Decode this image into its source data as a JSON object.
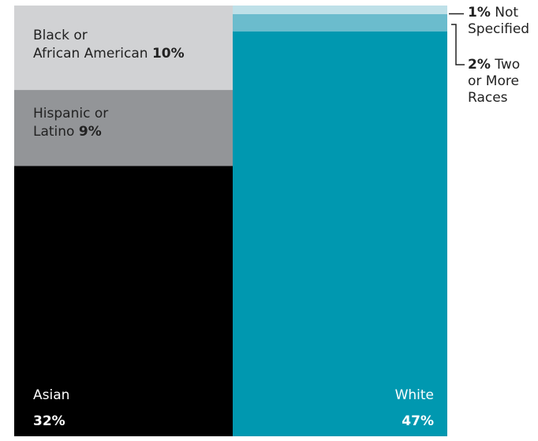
{
  "chart_data": {
    "type": "treemap",
    "unit": "%",
    "segments": [
      {
        "label_lines": [
          "Black or",
          "African American"
        ],
        "value": 10,
        "value_label": "10%",
        "color": "#d1d2d4"
      },
      {
        "label_lines": [
          "Hispanic or",
          "Latino"
        ],
        "value": 9,
        "value_label": "9%",
        "color": "#939598"
      },
      {
        "label_lines": [
          "Asian"
        ],
        "value": 32,
        "value_label": "32%",
        "color": "#000000"
      },
      {
        "label_lines": [
          "White"
        ],
        "value": 47,
        "value_label": "47%",
        "color": "#0098b0"
      },
      {
        "label_lines": [
          "Two",
          "or More",
          "Races"
        ],
        "value": 2,
        "value_label": "2%",
        "color": "#6bbccd"
      },
      {
        "label_lines": [
          "Not",
          "Specified"
        ],
        "value": 1,
        "value_label": "1%",
        "color": "#bee0e8"
      }
    ]
  }
}
